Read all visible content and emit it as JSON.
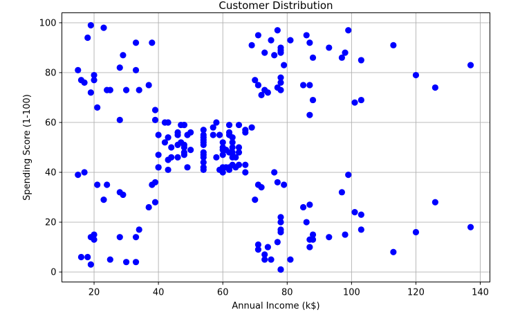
{
  "chart_data": {
    "type": "scatter",
    "title": "Customer Distribution",
    "xlabel": "Annual Income (k$)",
    "ylabel": "Spending Score (1-100)",
    "xlim": [
      10,
      143
    ],
    "ylim": [
      -4,
      104
    ],
    "xticks": [
      20,
      40,
      60,
      80,
      100,
      120,
      140
    ],
    "yticks": [
      0,
      20,
      40,
      60,
      80,
      100
    ],
    "grid": true,
    "marker_color": "#0000ff",
    "points": [
      [
        15,
        39
      ],
      [
        15,
        81
      ],
      [
        16,
        6
      ],
      [
        16,
        77
      ],
      [
        17,
        40
      ],
      [
        17,
        76
      ],
      [
        18,
        6
      ],
      [
        18,
        94
      ],
      [
        19,
        3
      ],
      [
        19,
        72
      ],
      [
        19,
        14
      ],
      [
        19,
        99
      ],
      [
        20,
        15
      ],
      [
        20,
        77
      ],
      [
        20,
        13
      ],
      [
        20,
        79
      ],
      [
        21,
        35
      ],
      [
        21,
        66
      ],
      [
        23,
        29
      ],
      [
        23,
        98
      ],
      [
        24,
        35
      ],
      [
        24,
        73
      ],
      [
        25,
        5
      ],
      [
        25,
        73
      ],
      [
        28,
        14
      ],
      [
        28,
        82
      ],
      [
        28,
        32
      ],
      [
        28,
        61
      ],
      [
        29,
        31
      ],
      [
        29,
        87
      ],
      [
        30,
        4
      ],
      [
        30,
        73
      ],
      [
        33,
        4
      ],
      [
        33,
        92
      ],
      [
        33,
        14
      ],
      [
        33,
        81
      ],
      [
        34,
        17
      ],
      [
        34,
        73
      ],
      [
        37,
        26
      ],
      [
        37,
        75
      ],
      [
        38,
        35
      ],
      [
        38,
        92
      ],
      [
        39,
        36
      ],
      [
        39,
        61
      ],
      [
        39,
        28
      ],
      [
        39,
        65
      ],
      [
        40,
        55
      ],
      [
        40,
        47
      ],
      [
        40,
        42
      ],
      [
        40,
        42
      ],
      [
        42,
        52
      ],
      [
        42,
        60
      ],
      [
        43,
        54
      ],
      [
        43,
        60
      ],
      [
        43,
        45
      ],
      [
        43,
        41
      ],
      [
        44,
        50
      ],
      [
        44,
        46
      ],
      [
        46,
        51
      ],
      [
        46,
        46
      ],
      [
        46,
        56
      ],
      [
        46,
        55
      ],
      [
        47,
        52
      ],
      [
        47,
        59
      ],
      [
        48,
        51
      ],
      [
        48,
        59
      ],
      [
        48,
        50
      ],
      [
        48,
        48
      ],
      [
        48,
        59
      ],
      [
        48,
        47
      ],
      [
        49,
        55
      ],
      [
        49,
        42
      ],
      [
        50,
        49
      ],
      [
        50,
        56
      ],
      [
        54,
        47
      ],
      [
        54,
        54
      ],
      [
        54,
        53
      ],
      [
        54,
        48
      ],
      [
        54,
        52
      ],
      [
        54,
        42
      ],
      [
        54,
        51
      ],
      [
        54,
        55
      ],
      [
        54,
        41
      ],
      [
        54,
        44
      ],
      [
        54,
        57
      ],
      [
        54,
        46
      ],
      [
        57,
        58
      ],
      [
        57,
        55
      ],
      [
        58,
        60
      ],
      [
        58,
        46
      ],
      [
        59,
        55
      ],
      [
        59,
        41
      ],
      [
        60,
        49
      ],
      [
        60,
        40
      ],
      [
        60,
        42
      ],
      [
        60,
        52
      ],
      [
        60,
        47
      ],
      [
        60,
        50
      ],
      [
        61,
        42
      ],
      [
        61,
        49
      ],
      [
        62,
        41
      ],
      [
        62,
        48
      ],
      [
        62,
        59
      ],
      [
        62,
        55
      ],
      [
        62,
        56
      ],
      [
        62,
        42
      ],
      [
        63,
        50
      ],
      [
        63,
        46
      ],
      [
        63,
        43
      ],
      [
        63,
        48
      ],
      [
        63,
        52
      ],
      [
        63,
        54
      ],
      [
        64,
        42
      ],
      [
        64,
        46
      ],
      [
        65,
        48
      ],
      [
        65,
        50
      ],
      [
        65,
        43
      ],
      [
        65,
        59
      ],
      [
        67,
        43
      ],
      [
        67,
        57
      ],
      [
        67,
        56
      ],
      [
        67,
        40
      ],
      [
        69,
        58
      ],
      [
        69,
        91
      ],
      [
        70,
        29
      ],
      [
        70,
        77
      ],
      [
        71,
        35
      ],
      [
        71,
        95
      ],
      [
        71,
        11
      ],
      [
        71,
        75
      ],
      [
        71,
        9
      ],
      [
        71,
        75
      ],
      [
        72,
        34
      ],
      [
        72,
        71
      ],
      [
        73,
        5
      ],
      [
        73,
        88
      ],
      [
        73,
        7
      ],
      [
        73,
        73
      ],
      [
        74,
        10
      ],
      [
        74,
        72
      ],
      [
        75,
        5
      ],
      [
        75,
        93
      ],
      [
        76,
        40
      ],
      [
        76,
        87
      ],
      [
        77,
        12
      ],
      [
        77,
        97
      ],
      [
        77,
        36
      ],
      [
        77,
        74
      ],
      [
        78,
        22
      ],
      [
        78,
        90
      ],
      [
        78,
        17
      ],
      [
        78,
        88
      ],
      [
        78,
        20
      ],
      [
        78,
        76
      ],
      [
        78,
        16
      ],
      [
        78,
        89
      ],
      [
        78,
        1
      ],
      [
        78,
        78
      ],
      [
        78,
        1
      ],
      [
        78,
        73
      ],
      [
        79,
        35
      ],
      [
        79,
        83
      ],
      [
        81,
        5
      ],
      [
        81,
        93
      ],
      [
        85,
        26
      ],
      [
        85,
        75
      ],
      [
        86,
        20
      ],
      [
        86,
        95
      ],
      [
        87,
        27
      ],
      [
        87,
        63
      ],
      [
        87,
        13
      ],
      [
        87,
        75
      ],
      [
        87,
        10
      ],
      [
        87,
        92
      ],
      [
        88,
        13
      ],
      [
        88,
        86
      ],
      [
        88,
        15
      ],
      [
        88,
        69
      ],
      [
        93,
        14
      ],
      [
        93,
        90
      ],
      [
        97,
        32
      ],
      [
        97,
        86
      ],
      [
        98,
        15
      ],
      [
        98,
        88
      ],
      [
        99,
        39
      ],
      [
        99,
        97
      ],
      [
        101,
        24
      ],
      [
        101,
        68
      ],
      [
        103,
        17
      ],
      [
        103,
        85
      ],
      [
        103,
        23
      ],
      [
        103,
        69
      ],
      [
        113,
        8
      ],
      [
        113,
        91
      ],
      [
        120,
        16
      ],
      [
        120,
        79
      ],
      [
        126,
        28
      ],
      [
        126,
        74
      ],
      [
        137,
        18
      ],
      [
        137,
        83
      ]
    ]
  }
}
